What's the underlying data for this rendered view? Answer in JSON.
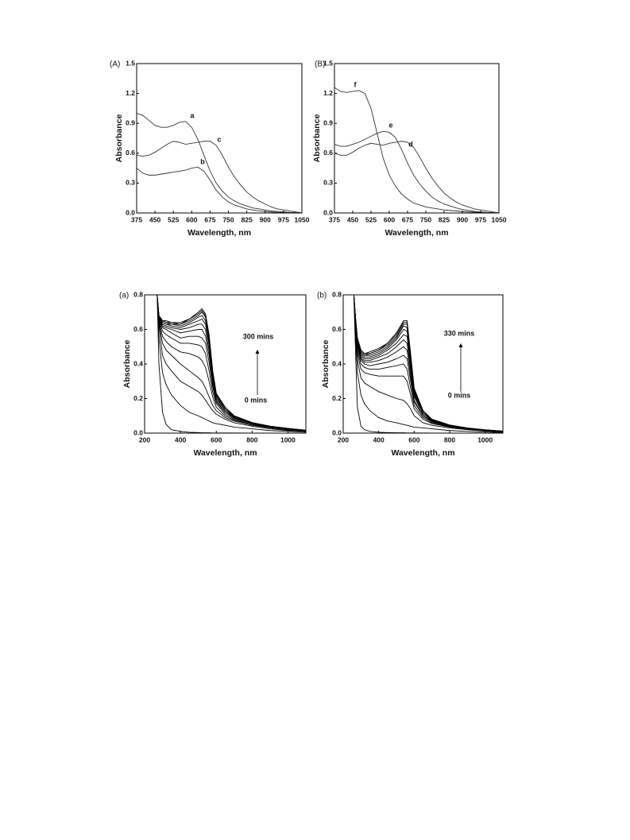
{
  "chart_data": [
    {
      "type": "line",
      "panel_label": "(A)",
      "xlabel": "Wavelength, nm",
      "ylabel": "Absorbance",
      "color": "#333333",
      "x": [
        375,
        400,
        425,
        450,
        475,
        500,
        525,
        550,
        575,
        600,
        625,
        650,
        675,
        700,
        725,
        750,
        775,
        800,
        825,
        850,
        875,
        900,
        925,
        950,
        975,
        1000,
        1025,
        1050
      ],
      "series": [
        {
          "name": "a",
          "values": [
            1.0,
            0.98,
            0.93,
            0.88,
            0.86,
            0.86,
            0.88,
            0.91,
            0.92,
            0.86,
            0.74,
            0.58,
            0.42,
            0.3,
            0.22,
            0.16,
            0.12,
            0.09,
            0.07,
            0.05,
            0.04,
            0.03,
            0.02,
            0.015,
            0.01,
            0.005,
            0.002,
            0
          ]
        },
        {
          "name": "b",
          "values": [
            0.45,
            0.4,
            0.38,
            0.38,
            0.39,
            0.4,
            0.41,
            0.42,
            0.43,
            0.45,
            0.46,
            0.42,
            0.33,
            0.23,
            0.16,
            0.11,
            0.08,
            0.06,
            0.04,
            0.03,
            0.02,
            0.015,
            0.01,
            0.005,
            0.003,
            0.002,
            0.001,
            0
          ]
        },
        {
          "name": "c",
          "values": [
            0.58,
            0.57,
            0.58,
            0.61,
            0.65,
            0.69,
            0.72,
            0.71,
            0.69,
            0.7,
            0.71,
            0.72,
            0.72,
            0.68,
            0.58,
            0.46,
            0.36,
            0.28,
            0.21,
            0.16,
            0.12,
            0.09,
            0.06,
            0.04,
            0.03,
            0.02,
            0.01,
            0
          ]
        }
      ],
      "xlim": [
        375,
        1050
      ],
      "xticks": [
        375,
        450,
        525,
        600,
        675,
        750,
        825,
        900,
        975,
        1050
      ],
      "ylim": [
        0,
        1.5
      ],
      "yticks": [
        {
          "value": 0,
          "label": "0.0"
        },
        0.3,
        0.6,
        0.9,
        1.2,
        1.5
      ]
    },
    {
      "type": "line",
      "panel_label": "(B)",
      "xlabel": "Wavelength, nm",
      "ylabel": "Absorbance",
      "color": "#333333",
      "x": [
        375,
        400,
        425,
        450,
        475,
        500,
        525,
        550,
        575,
        600,
        625,
        650,
        675,
        700,
        725,
        750,
        775,
        800,
        825,
        850,
        875,
        900,
        925,
        950,
        975,
        1000,
        1025,
        1050
      ],
      "series": [
        {
          "name": "f",
          "values": [
            1.26,
            1.22,
            1.21,
            1.22,
            1.23,
            1.2,
            1.05,
            0.8,
            0.55,
            0.38,
            0.27,
            0.19,
            0.14,
            0.1,
            0.08,
            0.06,
            0.05,
            0.04,
            0.03,
            0.025,
            0.02,
            0.015,
            0.01,
            0.008,
            0.005,
            0.003,
            0.001,
            0
          ]
        },
        {
          "name": "e",
          "values": [
            0.69,
            0.67,
            0.67,
            0.69,
            0.71,
            0.74,
            0.77,
            0.8,
            0.82,
            0.81,
            0.76,
            0.64,
            0.5,
            0.38,
            0.29,
            0.22,
            0.16,
            0.12,
            0.09,
            0.07,
            0.05,
            0.035,
            0.025,
            0.015,
            0.01,
            0.005,
            0.002,
            0
          ]
        },
        {
          "name": "d",
          "values": [
            0.6,
            0.58,
            0.58,
            0.61,
            0.65,
            0.68,
            0.7,
            0.69,
            0.68,
            0.7,
            0.71,
            0.72,
            0.71,
            0.66,
            0.56,
            0.45,
            0.35,
            0.27,
            0.2,
            0.15,
            0.11,
            0.08,
            0.06,
            0.04,
            0.03,
            0.02,
            0.01,
            0
          ]
        }
      ],
      "xlim": [
        375,
        1050
      ],
      "xticks": [
        375,
        450,
        525,
        600,
        675,
        750,
        825,
        900,
        975,
        1050
      ],
      "ylim": [
        0,
        1.5
      ],
      "yticks": [
        {
          "value": 0,
          "label": "0.0"
        },
        0.3,
        0.6,
        0.9,
        1.2,
        1.5
      ]
    },
    {
      "type": "line",
      "panel_label": "(a)",
      "xlabel": "Wavelength, nm",
      "ylabel": "Absorbance",
      "color": "#000000",
      "annotations": [
        "300 mins",
        "0 mins"
      ],
      "x": [
        270,
        280,
        300,
        320,
        350,
        400,
        450,
        500,
        520,
        540,
        560,
        580,
        600,
        650,
        700,
        800,
        900,
        1000,
        1100
      ],
      "series": [
        {
          "values": [
            0.8,
            0.4,
            0.12,
            0.05,
            0.02,
            0.01,
            0.005,
            0.003,
            0.002,
            0.002,
            0.002,
            0.001,
            0.001,
            0.001,
            0.001,
            0,
            0,
            0,
            0
          ]
        },
        {
          "values": [
            0.8,
            0.55,
            0.35,
            0.28,
            0.22,
            0.16,
            0.12,
            0.1,
            0.09,
            0.08,
            0.07,
            0.06,
            0.055,
            0.045,
            0.035,
            0.025,
            0.015,
            0.01,
            0.005
          ]
        },
        {
          "values": [
            0.8,
            0.62,
            0.45,
            0.4,
            0.36,
            0.3,
            0.27,
            0.24,
            0.22,
            0.19,
            0.16,
            0.13,
            0.11,
            0.08,
            0.06,
            0.04,
            0.025,
            0.015,
            0.01
          ]
        },
        {
          "values": [
            0.8,
            0.64,
            0.52,
            0.48,
            0.45,
            0.4,
            0.36,
            0.32,
            0.3,
            0.26,
            0.21,
            0.16,
            0.13,
            0.09,
            0.07,
            0.045,
            0.03,
            0.02,
            0.01
          ]
        },
        {
          "values": [
            0.8,
            0.65,
            0.56,
            0.53,
            0.5,
            0.47,
            0.46,
            0.44,
            0.42,
            0.38,
            0.3,
            0.21,
            0.15,
            0.1,
            0.075,
            0.05,
            0.03,
            0.02,
            0.012
          ]
        },
        {
          "values": [
            0.8,
            0.66,
            0.59,
            0.57,
            0.55,
            0.52,
            0.52,
            0.51,
            0.5,
            0.46,
            0.36,
            0.24,
            0.17,
            0.11,
            0.08,
            0.05,
            0.035,
            0.022,
            0.013
          ]
        },
        {
          "values": [
            0.8,
            0.66,
            0.61,
            0.6,
            0.58,
            0.55,
            0.56,
            0.56,
            0.55,
            0.52,
            0.41,
            0.27,
            0.18,
            0.12,
            0.085,
            0.055,
            0.036,
            0.023,
            0.014
          ]
        },
        {
          "values": [
            0.8,
            0.67,
            0.62,
            0.61,
            0.6,
            0.58,
            0.59,
            0.6,
            0.6,
            0.56,
            0.45,
            0.29,
            0.19,
            0.12,
            0.09,
            0.056,
            0.037,
            0.024,
            0.014
          ]
        },
        {
          "values": [
            0.8,
            0.67,
            0.63,
            0.62,
            0.61,
            0.6,
            0.61,
            0.63,
            0.63,
            0.6,
            0.48,
            0.31,
            0.2,
            0.13,
            0.09,
            0.057,
            0.038,
            0.025,
            0.015
          ]
        },
        {
          "values": [
            0.8,
            0.67,
            0.64,
            0.63,
            0.62,
            0.61,
            0.63,
            0.65,
            0.66,
            0.63,
            0.51,
            0.33,
            0.21,
            0.13,
            0.095,
            0.058,
            0.038,
            0.025,
            0.015
          ]
        },
        {
          "values": [
            0.8,
            0.68,
            0.64,
            0.63,
            0.63,
            0.62,
            0.64,
            0.67,
            0.68,
            0.65,
            0.53,
            0.34,
            0.22,
            0.14,
            0.095,
            0.059,
            0.039,
            0.026,
            0.016
          ]
        },
        {
          "values": [
            0.8,
            0.68,
            0.65,
            0.64,
            0.63,
            0.63,
            0.65,
            0.68,
            0.7,
            0.67,
            0.55,
            0.35,
            0.22,
            0.14,
            0.1,
            0.06,
            0.04,
            0.026,
            0.016
          ]
        },
        {
          "values": [
            0.8,
            0.68,
            0.65,
            0.64,
            0.64,
            0.63,
            0.66,
            0.69,
            0.71,
            0.68,
            0.56,
            0.36,
            0.23,
            0.14,
            0.1,
            0.06,
            0.04,
            0.027,
            0.016
          ]
        },
        {
          "values": [
            0.8,
            0.68,
            0.65,
            0.65,
            0.64,
            0.64,
            0.66,
            0.7,
            0.72,
            0.69,
            0.57,
            0.36,
            0.23,
            0.15,
            0.1,
            0.061,
            0.04,
            0.027,
            0.017
          ]
        }
      ],
      "xlim": [
        200,
        1100
      ],
      "xticks": [
        200,
        400,
        600,
        800,
        1000
      ],
      "ylim": [
        0,
        0.8
      ],
      "yticks": [
        {
          "value": 0,
          "label": "0.0"
        },
        0.2,
        0.4,
        0.6,
        0.8
      ]
    },
    {
      "type": "line",
      "panel_label": "(b)",
      "xlabel": "Wavelength, nm",
      "ylabel": "Absorbance",
      "color": "#000000",
      "annotations": [
        "330 mins",
        "0 mins"
      ],
      "x": [
        260,
        270,
        280,
        300,
        320,
        350,
        400,
        450,
        500,
        540,
        560,
        580,
        600,
        650,
        700,
        800,
        900,
        1000,
        1100
      ],
      "series": [
        {
          "values": [
            0.8,
            0.45,
            0.15,
            0.04,
            0.02,
            0.01,
            0.005,
            0.003,
            0.002,
            0.002,
            0.001,
            0.001,
            0.001,
            0.001,
            0,
            0,
            0,
            0,
            0
          ]
        },
        {
          "values": [
            0.8,
            0.55,
            0.35,
            0.22,
            0.17,
            0.13,
            0.09,
            0.07,
            0.06,
            0.05,
            0.045,
            0.04,
            0.035,
            0.03,
            0.025,
            0.015,
            0.01,
            0.006,
            0.003
          ]
        },
        {
          "values": [
            0.8,
            0.6,
            0.42,
            0.32,
            0.29,
            0.27,
            0.24,
            0.22,
            0.2,
            0.19,
            0.17,
            0.14,
            0.1,
            0.06,
            0.045,
            0.03,
            0.02,
            0.012,
            0.006
          ]
        },
        {
          "values": [
            0.8,
            0.62,
            0.46,
            0.37,
            0.35,
            0.34,
            0.33,
            0.33,
            0.33,
            0.33,
            0.3,
            0.22,
            0.14,
            0.08,
            0.055,
            0.035,
            0.022,
            0.014,
            0.008
          ]
        },
        {
          "values": [
            0.8,
            0.63,
            0.48,
            0.4,
            0.38,
            0.37,
            0.37,
            0.38,
            0.39,
            0.4,
            0.37,
            0.26,
            0.16,
            0.09,
            0.06,
            0.037,
            0.024,
            0.015,
            0.009
          ]
        },
        {
          "values": [
            0.8,
            0.64,
            0.5,
            0.42,
            0.4,
            0.39,
            0.4,
            0.41,
            0.43,
            0.45,
            0.43,
            0.3,
            0.18,
            0.1,
            0.065,
            0.04,
            0.025,
            0.016,
            0.009
          ]
        },
        {
          "values": [
            0.8,
            0.64,
            0.51,
            0.43,
            0.41,
            0.41,
            0.42,
            0.44,
            0.47,
            0.5,
            0.48,
            0.33,
            0.19,
            0.1,
            0.068,
            0.041,
            0.026,
            0.016,
            0.01
          ]
        },
        {
          "values": [
            0.8,
            0.65,
            0.52,
            0.44,
            0.42,
            0.42,
            0.44,
            0.46,
            0.5,
            0.54,
            0.52,
            0.36,
            0.21,
            0.11,
            0.07,
            0.042,
            0.027,
            0.017,
            0.01
          ]
        },
        {
          "values": [
            0.8,
            0.65,
            0.53,
            0.45,
            0.43,
            0.43,
            0.45,
            0.48,
            0.52,
            0.57,
            0.56,
            0.39,
            0.22,
            0.11,
            0.072,
            0.043,
            0.027,
            0.017,
            0.01
          ]
        },
        {
          "values": [
            0.8,
            0.65,
            0.53,
            0.46,
            0.44,
            0.44,
            0.46,
            0.49,
            0.54,
            0.6,
            0.59,
            0.41,
            0.23,
            0.12,
            0.074,
            0.044,
            0.028,
            0.018,
            0.011
          ]
        },
        {
          "values": [
            0.8,
            0.66,
            0.54,
            0.47,
            0.45,
            0.45,
            0.47,
            0.5,
            0.55,
            0.62,
            0.61,
            0.43,
            0.24,
            0.12,
            0.076,
            0.045,
            0.028,
            0.018,
            0.011
          ]
        },
        {
          "values": [
            0.8,
            0.66,
            0.54,
            0.47,
            0.45,
            0.46,
            0.48,
            0.51,
            0.56,
            0.63,
            0.63,
            0.44,
            0.25,
            0.12,
            0.078,
            0.046,
            0.029,
            0.018,
            0.011
          ]
        },
        {
          "values": [
            0.8,
            0.66,
            0.55,
            0.48,
            0.46,
            0.46,
            0.48,
            0.52,
            0.57,
            0.64,
            0.64,
            0.45,
            0.25,
            0.13,
            0.08,
            0.047,
            0.029,
            0.019,
            0.011
          ]
        },
        {
          "values": [
            0.8,
            0.66,
            0.55,
            0.48,
            0.46,
            0.47,
            0.49,
            0.52,
            0.58,
            0.65,
            0.65,
            0.46,
            0.26,
            0.13,
            0.08,
            0.047,
            0.03,
            0.019,
            0.012
          ]
        }
      ],
      "xlim": [
        200,
        1100
      ],
      "xticks": [
        200,
        400,
        600,
        800,
        1000
      ],
      "ylim": [
        0,
        0.8
      ],
      "yticks": [
        {
          "value": 0,
          "label": "0.0"
        },
        0.2,
        0.4,
        0.6,
        0.8
      ]
    }
  ]
}
